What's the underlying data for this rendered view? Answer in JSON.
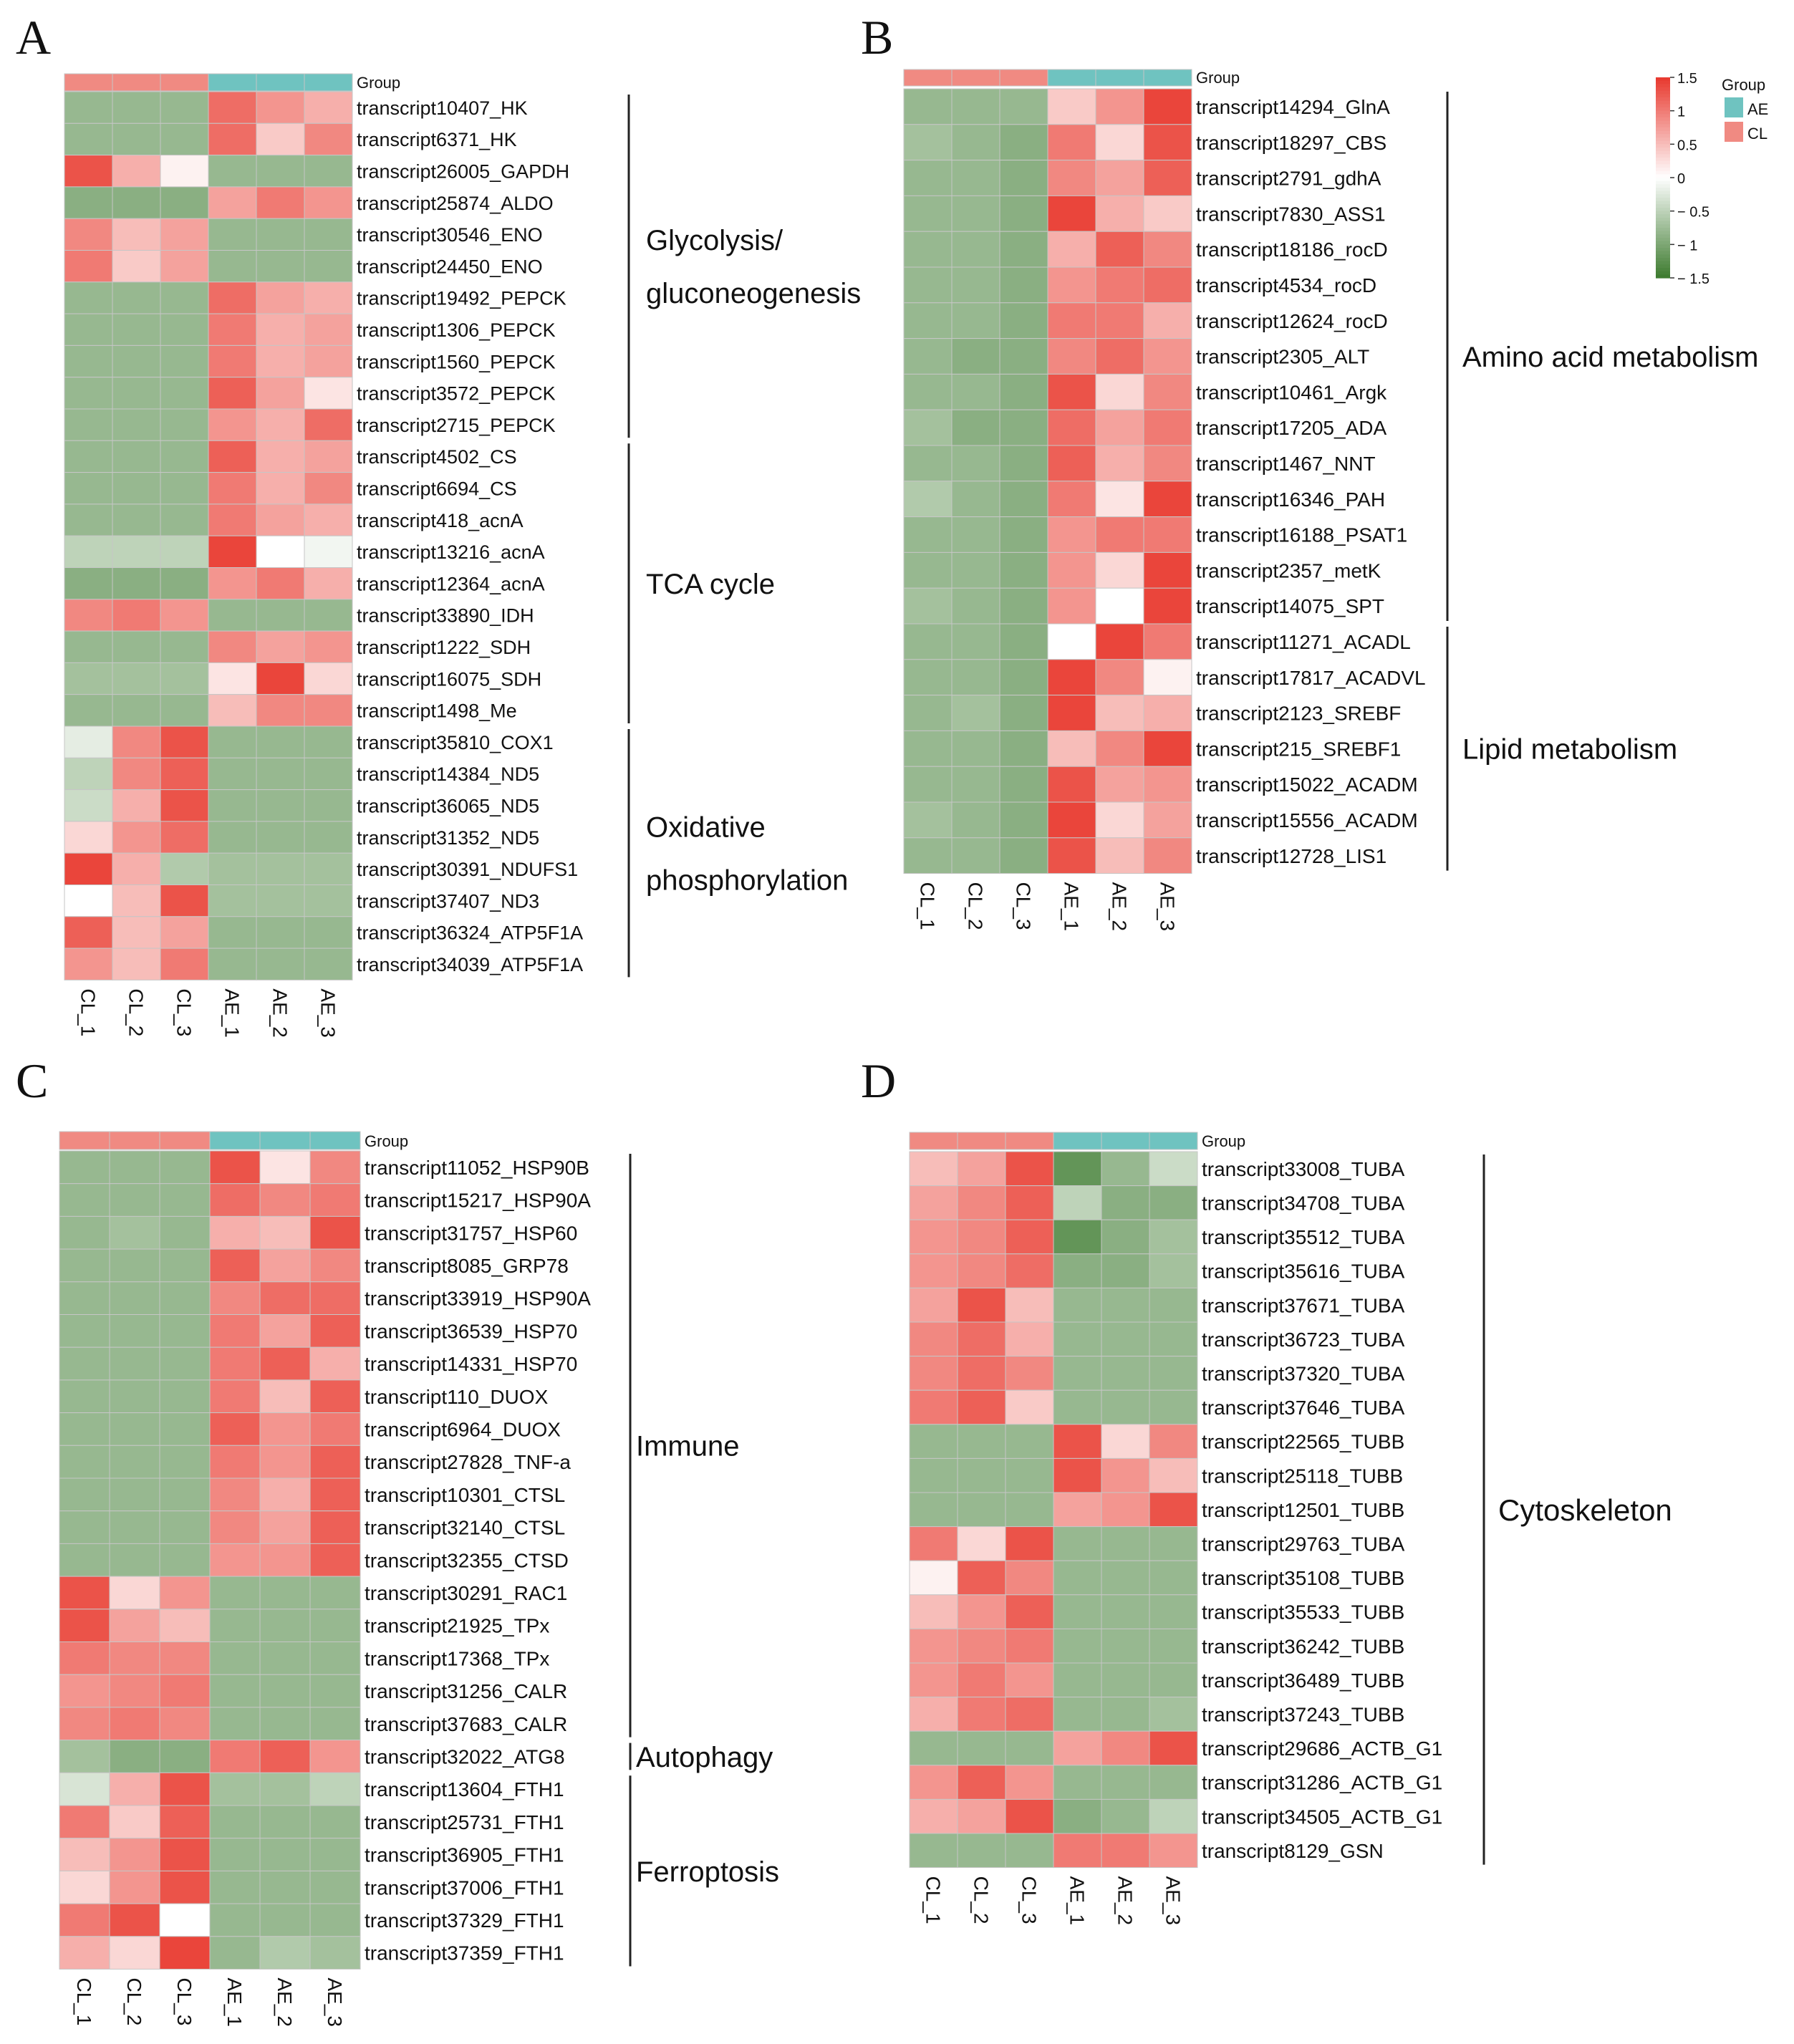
{
  "colors": {
    "AE": "#6fc3c0",
    "CL": "#f08a82",
    "high": "#e8382d",
    "mid": "#ffffff",
    "low": "#3c7a2e",
    "cell_border": "#c6c6c6"
  },
  "legend": {
    "scale_ticks": [
      "1.5",
      "1",
      "0.5",
      "0",
      "− 0.5",
      "− 1",
      "− 1.5"
    ],
    "scale_values": [
      1.5,
      1,
      0.5,
      0,
      -0.5,
      -1,
      -1.5
    ],
    "group_title": "Group",
    "groups": [
      {
        "label": "AE",
        "color": "#6fc3c0"
      },
      {
        "label": "CL",
        "color": "#f08a82"
      }
    ]
  },
  "chart_data": [
    {
      "type": "heatmap",
      "panel": "A",
      "group_header": "Group",
      "columns": [
        "CL_1",
        "CL_2",
        "CL_3",
        "AE_1",
        "AE_2",
        "AE_3"
      ],
      "column_groups": [
        "CL",
        "CL",
        "CL",
        "AE",
        "AE",
        "AE"
      ],
      "rows": [
        "transcript10407_HK",
        "transcript6371_HK",
        "transcript26005_GAPDH",
        "transcript25874_ALDO",
        "transcript30546_ENO",
        "transcript24450_ENO",
        "transcript19492_PEPCK",
        "transcript1306_PEPCK",
        "transcript1560_PEPCK",
        "transcript3572_PEPCK",
        "transcript2715_PEPCK",
        "transcript4502_CS",
        "transcript6694_CS",
        "transcript418_acnA",
        "transcript13216_acnA",
        "transcript12364_acnA",
        "transcript33890_IDH",
        "transcript1222_SDH",
        "transcript16075_SDH",
        "transcript1498_Me",
        "transcript35810_COX1",
        "transcript14384_ND5",
        "transcript36065_ND5",
        "transcript31352_ND5",
        "transcript30391_NDUFS1",
        "transcript37407_ND3",
        "transcript36324_ATP5F1A",
        "transcript34039_ATP5F1A"
      ],
      "values": [
        [
          -0.8,
          -0.8,
          -0.8,
          1.1,
          0.8,
          0.6
        ],
        [
          -0.8,
          -0.8,
          -0.8,
          1.1,
          0.4,
          0.9
        ],
        [
          1.3,
          0.6,
          0.1,
          -0.8,
          -0.8,
          -0.8
        ],
        [
          -0.9,
          -0.9,
          -0.9,
          0.7,
          1.0,
          0.8
        ],
        [
          0.9,
          0.5,
          0.7,
          -0.8,
          -0.8,
          -0.8
        ],
        [
          1.0,
          0.4,
          0.7,
          -0.8,
          -0.8,
          -0.8
        ],
        [
          -0.8,
          -0.8,
          -0.8,
          1.1,
          0.7,
          0.6
        ],
        [
          -0.8,
          -0.8,
          -0.8,
          1.0,
          0.6,
          0.7
        ],
        [
          -0.8,
          -0.8,
          -0.8,
          1.0,
          0.6,
          0.7
        ],
        [
          -0.8,
          -0.8,
          -0.8,
          1.2,
          0.7,
          0.2
        ],
        [
          -0.8,
          -0.8,
          -0.8,
          0.8,
          0.6,
          1.1
        ],
        [
          -0.8,
          -0.8,
          -0.8,
          1.2,
          0.6,
          0.7
        ],
        [
          -0.8,
          -0.8,
          -0.8,
          1.0,
          0.6,
          0.9
        ],
        [
          -0.8,
          -0.8,
          -0.8,
          1.0,
          0.7,
          0.6
        ],
        [
          -0.5,
          -0.5,
          -0.5,
          1.4,
          0.0,
          -0.1
        ],
        [
          -0.9,
          -0.9,
          -0.9,
          0.8,
          1.0,
          0.6
        ],
        [
          0.9,
          1.0,
          0.8,
          -0.8,
          -0.8,
          -0.8
        ],
        [
          -0.8,
          -0.8,
          -0.8,
          0.9,
          0.7,
          0.8
        ],
        [
          -0.7,
          -0.7,
          -0.7,
          0.2,
          1.4,
          0.3
        ],
        [
          -0.8,
          -0.8,
          -0.8,
          0.5,
          0.9,
          0.9
        ],
        [
          -0.2,
          0.9,
          1.3,
          -0.8,
          -0.8,
          -0.8
        ],
        [
          -0.5,
          0.9,
          1.2,
          -0.8,
          -0.8,
          -0.8
        ],
        [
          -0.4,
          0.6,
          1.3,
          -0.8,
          -0.8,
          -0.8
        ],
        [
          0.3,
          0.8,
          1.1,
          -0.8,
          -0.8,
          -0.8
        ],
        [
          1.4,
          0.6,
          -0.6,
          -0.7,
          -0.7,
          -0.7
        ],
        [
          0.0,
          0.5,
          1.3,
          -0.7,
          -0.7,
          -0.7
        ],
        [
          1.2,
          0.5,
          0.7,
          -0.8,
          -0.8,
          -0.8
        ],
        [
          0.8,
          0.5,
          1.0,
          -0.8,
          -0.8,
          -0.8
        ]
      ],
      "categories": [
        {
          "lines": [
            "Glycolysis/",
            "gluconeogenesis"
          ],
          "from": 0,
          "to": 10
        },
        {
          "lines": [
            "TCA cycle"
          ],
          "from": 11,
          "to": 19
        },
        {
          "lines": [
            "Oxidative",
            "phosphorylation"
          ],
          "from": 20,
          "to": 27
        }
      ]
    },
    {
      "type": "heatmap",
      "panel": "B",
      "group_header": "Group",
      "columns": [
        "CL_1",
        "CL_2",
        "CL_3",
        "AE_1",
        "AE_2",
        "AE_3"
      ],
      "column_groups": [
        "CL",
        "CL",
        "CL",
        "AE",
        "AE",
        "AE"
      ],
      "rows": [
        "transcript14294_GlnA",
        "transcript18297_CBS",
        "transcript2791_gdhA",
        "transcript7830_ASS1",
        "transcript18186_rocD",
        "transcript4534_rocD",
        "transcript12624_rocD",
        "transcript2305_ALT",
        "transcript10461_Argk",
        "transcript17205_ADA",
        "transcript1467_NNT",
        "transcript16346_PAH",
        "transcript16188_PSAT1",
        "transcript2357_metK",
        "transcript14075_SPT",
        "transcript11271_ACADL",
        "transcript17817_ACADVL",
        "transcript2123_SREBF",
        "transcript215_SREBF1",
        "transcript15022_ACADM",
        "transcript15556_ACADM",
        "transcript12728_LIS1"
      ],
      "values": [
        [
          -0.8,
          -0.8,
          -0.8,
          0.4,
          0.8,
          1.4
        ],
        [
          -0.7,
          -0.8,
          -0.9,
          1.0,
          0.3,
          1.3
        ],
        [
          -0.8,
          -0.8,
          -0.9,
          0.9,
          0.7,
          1.2
        ],
        [
          -0.8,
          -0.8,
          -0.9,
          1.4,
          0.6,
          0.4
        ],
        [
          -0.8,
          -0.8,
          -0.9,
          0.6,
          1.2,
          0.9
        ],
        [
          -0.8,
          -0.8,
          -0.9,
          0.8,
          1.0,
          1.1
        ],
        [
          -0.8,
          -0.8,
          -0.9,
          1.0,
          1.0,
          0.6
        ],
        [
          -0.8,
          -0.9,
          -0.9,
          0.9,
          1.1,
          0.8
        ],
        [
          -0.8,
          -0.8,
          -0.9,
          1.3,
          0.3,
          0.9
        ],
        [
          -0.7,
          -0.9,
          -0.9,
          1.1,
          0.7,
          1.0
        ],
        [
          -0.8,
          -0.8,
          -0.9,
          1.2,
          0.6,
          0.9
        ],
        [
          -0.6,
          -0.8,
          -0.9,
          1.0,
          0.2,
          1.4
        ],
        [
          -0.8,
          -0.8,
          -0.9,
          0.8,
          1.0,
          1.0
        ],
        [
          -0.8,
          -0.8,
          -0.9,
          0.8,
          0.3,
          1.4
        ],
        [
          -0.7,
          -0.8,
          -0.9,
          0.8,
          0.0,
          1.4
        ],
        [
          -0.8,
          -0.8,
          -0.9,
          0.0,
          1.4,
          1.0
        ],
        [
          -0.8,
          -0.8,
          -0.9,
          1.4,
          0.9,
          0.1
        ],
        [
          -0.8,
          -0.7,
          -0.9,
          1.4,
          0.5,
          0.6
        ],
        [
          -0.8,
          -0.8,
          -0.9,
          0.5,
          0.9,
          1.4
        ],
        [
          -0.8,
          -0.8,
          -0.9,
          1.3,
          0.7,
          0.8
        ],
        [
          -0.7,
          -0.8,
          -0.9,
          1.4,
          0.3,
          0.7
        ],
        [
          -0.8,
          -0.8,
          -0.9,
          1.3,
          0.5,
          0.9
        ]
      ],
      "categories": [
        {
          "lines": [
            "Amino acid metabolism"
          ],
          "from": 0,
          "to": 14
        },
        {
          "lines": [
            "Lipid metabolism"
          ],
          "from": 15,
          "to": 21
        }
      ]
    },
    {
      "type": "heatmap",
      "panel": "C",
      "group_header": "Group",
      "columns": [
        "CL_1",
        "CL_2",
        "CL_3",
        "AE_1",
        "AE_2",
        "AE_3"
      ],
      "column_groups": [
        "CL",
        "CL",
        "CL",
        "AE",
        "AE",
        "AE"
      ],
      "rows": [
        "transcript11052_HSP90B",
        "transcript15217_HSP90A",
        "transcript31757_HSP60",
        "transcript8085_GRP78",
        "transcript33919_HSP90A",
        "transcript36539_HSP70",
        "transcript14331_HSP70",
        "transcript110_DUOX",
        "transcript6964_DUOX",
        "transcript27828_TNF-a",
        "transcript10301_CTSL",
        "transcript32140_CTSL",
        "transcript32355_CTSD",
        "transcript30291_RAC1",
        "transcript21925_TPx",
        "transcript17368_TPx",
        "transcript31256_CALR",
        "transcript37683_CALR",
        "transcript32022_ATG8",
        "transcript13604_FTH1",
        "transcript25731_FTH1",
        "transcript36905_FTH1",
        "transcript37006_FTH1",
        "transcript37329_FTH1",
        "transcript37359_FTH1"
      ],
      "values": [
        [
          -0.8,
          -0.8,
          -0.8,
          1.3,
          0.2,
          0.9
        ],
        [
          -0.8,
          -0.8,
          -0.8,
          1.1,
          0.9,
          1.0
        ],
        [
          -0.8,
          -0.7,
          -0.8,
          0.6,
          0.5,
          1.3
        ],
        [
          -0.8,
          -0.8,
          -0.8,
          1.2,
          0.7,
          0.9
        ],
        [
          -0.8,
          -0.8,
          -0.8,
          0.9,
          1.1,
          1.1
        ],
        [
          -0.8,
          -0.8,
          -0.8,
          1.0,
          0.7,
          1.2
        ],
        [
          -0.8,
          -0.8,
          -0.8,
          1.0,
          1.2,
          0.6
        ],
        [
          -0.8,
          -0.8,
          -0.8,
          1.0,
          0.5,
          1.2
        ],
        [
          -0.8,
          -0.8,
          -0.8,
          1.2,
          0.8,
          1.0
        ],
        [
          -0.8,
          -0.8,
          -0.8,
          1.0,
          0.8,
          1.2
        ],
        [
          -0.8,
          -0.8,
          -0.8,
          0.9,
          0.6,
          1.2
        ],
        [
          -0.8,
          -0.8,
          -0.8,
          0.9,
          0.7,
          1.2
        ],
        [
          -0.8,
          -0.8,
          -0.8,
          0.8,
          0.8,
          1.2
        ],
        [
          1.3,
          0.3,
          0.8,
          -0.8,
          -0.8,
          -0.8
        ],
        [
          1.3,
          0.7,
          0.5,
          -0.8,
          -0.8,
          -0.8
        ],
        [
          1.0,
          0.9,
          0.9,
          -0.8,
          -0.8,
          -0.8
        ],
        [
          0.8,
          0.9,
          1.0,
          -0.8,
          -0.8,
          -0.8
        ],
        [
          0.9,
          1.0,
          0.9,
          -0.8,
          -0.8,
          -0.8
        ],
        [
          -0.7,
          -0.9,
          -0.9,
          1.0,
          1.2,
          0.8
        ],
        [
          -0.3,
          0.6,
          1.3,
          -0.7,
          -0.7,
          -0.5
        ],
        [
          1.0,
          0.4,
          1.2,
          -0.8,
          -0.8,
          -0.8
        ],
        [
          0.5,
          0.8,
          1.3,
          -0.8,
          -0.8,
          -0.8
        ],
        [
          0.3,
          0.8,
          1.3,
          -0.8,
          -0.8,
          -0.8
        ],
        [
          1.0,
          1.3,
          0.0,
          -0.8,
          -0.8,
          -0.8
        ],
        [
          0.6,
          0.3,
          1.4,
          -0.8,
          -0.6,
          -0.7
        ]
      ],
      "categories": [
        {
          "lines": [
            "Immune"
          ],
          "from": 0,
          "to": 17
        },
        {
          "lines": [
            "Autophagy"
          ],
          "from": 18,
          "to": 18
        },
        {
          "lines": [
            "Ferroptosis"
          ],
          "from": 19,
          "to": 24
        }
      ]
    },
    {
      "type": "heatmap",
      "panel": "D",
      "group_header": "Group",
      "columns": [
        "CL_1",
        "CL_2",
        "CL_3",
        "AE_1",
        "AE_2",
        "AE_3"
      ],
      "column_groups": [
        "CL",
        "CL",
        "CL",
        "AE",
        "AE",
        "AE"
      ],
      "rows": [
        "transcript33008_TUBA",
        "transcript34708_TUBA",
        "transcript35512_TUBA",
        "transcript35616_TUBA",
        "transcript37671_TUBA",
        "transcript36723_TUBA",
        "transcript37320_TUBA",
        "transcript37646_TUBA",
        "transcript22565_TUBB",
        "transcript25118_TUBB",
        "transcript12501_TUBB",
        "transcript29763_TUBA",
        "transcript35108_TUBB",
        "transcript35533_TUBB",
        "transcript36242_TUBB",
        "transcript36489_TUBB",
        "transcript37243_TUBB",
        "transcript29686_ACTB_G1",
        "transcript31286_ACTB_G1",
        "transcript34505_ACTB_G1",
        "transcript8129_GSN"
      ],
      "values": [
        [
          0.5,
          0.7,
          1.3,
          -1.2,
          -0.8,
          -0.4
        ],
        [
          0.7,
          0.9,
          1.2,
          -0.5,
          -0.9,
          -0.9
        ],
        [
          0.8,
          0.9,
          1.2,
          -1.2,
          -0.9,
          -0.7
        ],
        [
          0.8,
          0.9,
          1.1,
          -0.9,
          -0.9,
          -0.7
        ],
        [
          0.7,
          1.3,
          0.5,
          -0.8,
          -0.8,
          -0.8
        ],
        [
          0.9,
          1.1,
          0.6,
          -0.8,
          -0.8,
          -0.8
        ],
        [
          0.9,
          1.1,
          0.9,
          -0.8,
          -0.8,
          -0.8
        ],
        [
          1.0,
          1.2,
          0.4,
          -0.8,
          -0.8,
          -0.8
        ],
        [
          -0.8,
          -0.8,
          -0.8,
          1.3,
          0.3,
          0.9
        ],
        [
          -0.8,
          -0.8,
          -0.8,
          1.3,
          0.8,
          0.5
        ],
        [
          -0.8,
          -0.8,
          -0.8,
          0.7,
          0.8,
          1.3
        ],
        [
          1.0,
          0.3,
          1.3,
          -0.8,
          -0.8,
          -0.8
        ],
        [
          0.1,
          1.2,
          0.9,
          -0.8,
          -0.8,
          -0.8
        ],
        [
          0.5,
          0.8,
          1.2,
          -0.8,
          -0.8,
          -0.8
        ],
        [
          0.8,
          0.9,
          1.0,
          -0.8,
          -0.8,
          -0.8
        ],
        [
          0.8,
          1.0,
          0.8,
          -0.8,
          -0.8,
          -0.8
        ],
        [
          0.6,
          1.0,
          1.1,
          -0.8,
          -0.8,
          -0.7
        ],
        [
          -0.8,
          -0.8,
          -0.8,
          0.7,
          0.9,
          1.3
        ],
        [
          0.8,
          1.2,
          0.8,
          -0.8,
          -0.8,
          -0.8
        ],
        [
          0.6,
          0.7,
          1.3,
          -0.9,
          -0.8,
          -0.5
        ],
        [
          -0.8,
          -0.8,
          -0.8,
          1.0,
          1.0,
          0.8
        ]
      ],
      "categories": [
        {
          "lines": [
            "Cytoskeleton"
          ],
          "from": 0,
          "to": 20
        }
      ]
    }
  ]
}
